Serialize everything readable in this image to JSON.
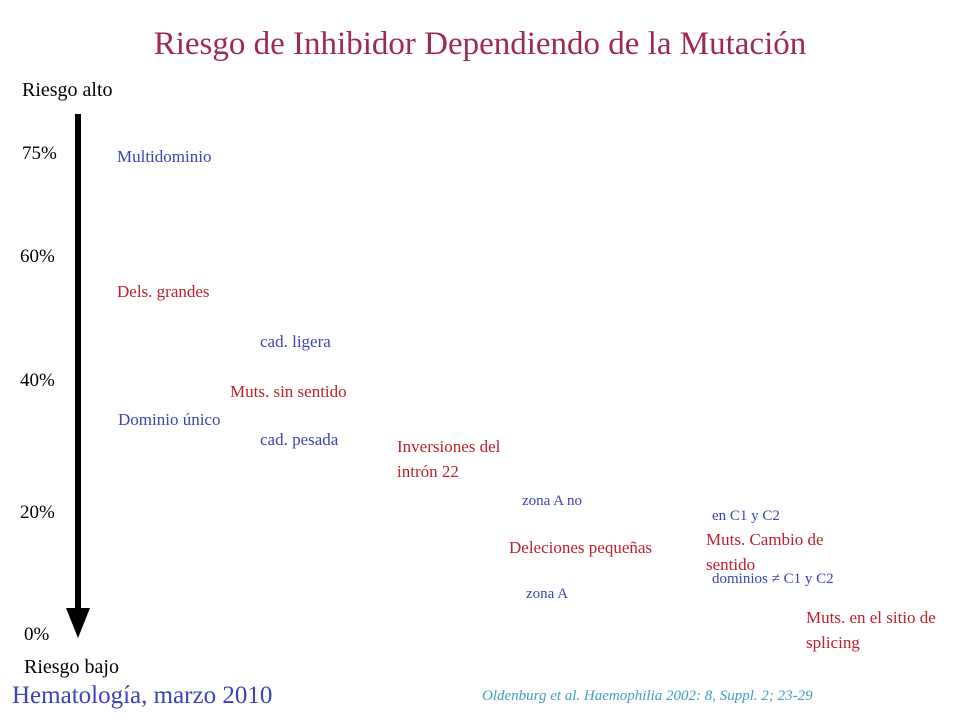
{
  "title": "Riesgo de Inhibidor Dependiendo de la Mutación",
  "axis": {
    "top_label": "Riesgo alto",
    "bottom_label": "Riesgo bajo",
    "ticks": [
      "75%",
      "60%",
      "40%",
      "20%",
      "0%"
    ]
  },
  "colors": {
    "title": "#9e2a4c",
    "blue": "#3b44b5",
    "red": "#c0202b",
    "citation": "#3fa0c0"
  },
  "labels": {
    "multidominio": "Multidominio",
    "dels_grandes": "Dels. grandes",
    "cad_ligera": "cad. ligera",
    "muts_sin_sentido": "Muts. sin sentido",
    "dominio_unico": "Dominio único",
    "cad_pesada": "cad. pesada",
    "inversiones": "Inversiones del intrón 22",
    "zona_a_no": "zona A no",
    "deleciones_pequenas": "Deleciones pequeñas",
    "zona_a": "zona A",
    "en_c1_c2": "en C1 y C2",
    "muts_cambio": "Muts. Cambio de sentido",
    "dominios_c1_c2": "dominios ≠ C1 y C2",
    "muts_splicing": "Muts. en el sitio de splicing"
  },
  "footer": {
    "left": "Hematología, marzo 2010",
    "citation": "Oldenburg et al. Haemophilia 2002: 8, Suppl. 2; 23-29"
  }
}
